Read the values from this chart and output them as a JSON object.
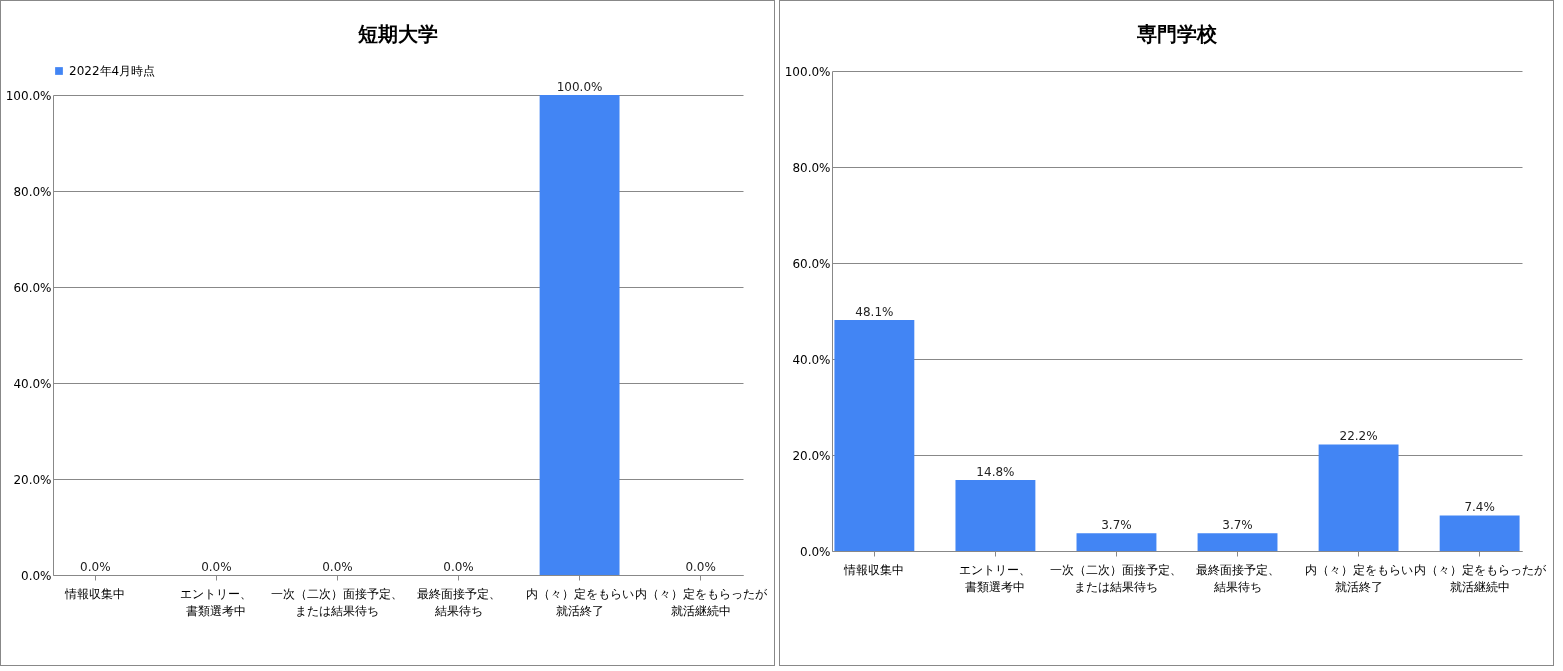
{
  "chart_data": [
    {
      "type": "bar",
      "title": "短期大学",
      "categories": [
        "情報収集中",
        "エントリー、書類選考中",
        "一次（二次）面接予定、または結果待ち",
        "最終面接予定、結果待ち",
        "内（々）定をもらい就活終了",
        "内（々）定をもらったが就活継続中"
      ],
      "series": [
        {
          "name": "2022年4月時点",
          "color": "#4285f4",
          "values": [
            0,
            0,
            0,
            0,
            100,
            0
          ],
          "value_labels": [
            "0.0%",
            "0.0%",
            "0.0%",
            "0.0%",
            "100.0%",
            "0.0%"
          ]
        }
      ],
      "ylim": [
        0,
        100
      ],
      "yticks": [
        {
          "value": 0,
          "label": "0.0%"
        },
        {
          "value": 20,
          "label": "20.0%"
        },
        {
          "value": 40,
          "label": "40.0%"
        },
        {
          "value": 60,
          "label": "60.0%"
        },
        {
          "value": 80,
          "label": "80.0%"
        },
        {
          "value": 100,
          "label": "100.0%"
        }
      ],
      "grid": "y",
      "legend": "top"
    },
    {
      "type": "bar",
      "title": "専門学校",
      "categories": [
        "情報収集中",
        "エントリー、書類選考中",
        "一次（二次）面接予定、または結果待ち",
        "最終面接予定、結果待ち",
        "内（々）定をもらい就活終了",
        "内（々）定をもらったが就活継続中"
      ],
      "series": [
        {
          "color": "#4285f4",
          "values": [
            48.1,
            14.8,
            3.7,
            3.7,
            22.2,
            7.4
          ],
          "value_labels": [
            "48.1%",
            "14.8%",
            "3.7%",
            "3.7%",
            "22.2%",
            "7.4%"
          ]
        }
      ],
      "ylim": [
        0,
        100
      ],
      "yticks": [
        {
          "value": 0,
          "label": "0.0%"
        },
        {
          "value": 20,
          "label": "20.0%"
        },
        {
          "value": 40,
          "label": "40.0%"
        },
        {
          "value": 60,
          "label": "60.0%"
        },
        {
          "value": 80,
          "label": "80.0%"
        },
        {
          "value": 100,
          "label": "100.0%"
        }
      ],
      "grid": "y"
    }
  ]
}
